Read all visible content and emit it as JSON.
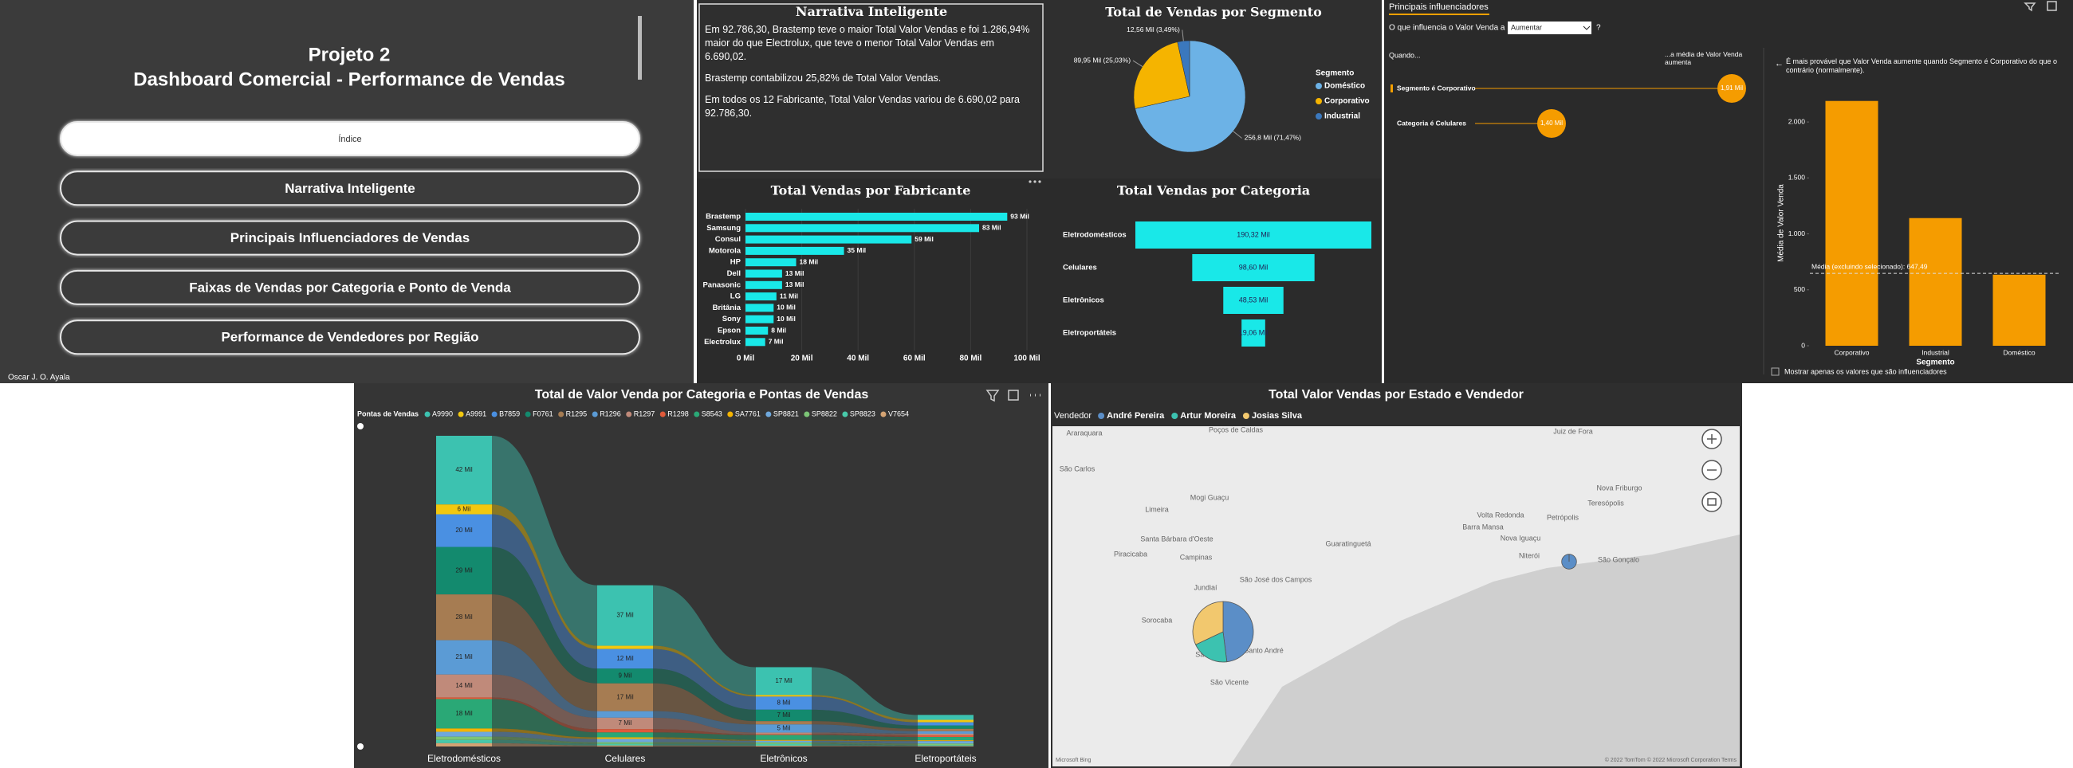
{
  "header": {
    "title": "Projeto 2",
    "subtitle": "Dashboard Comercial - Performance de Vendas",
    "author": "Oscar J. O. Ayala"
  },
  "nav": [
    "Índice",
    "Narrativa Inteligente",
    "Principais Influenciadores de Vendas",
    "Faixas de Vendas por Categoria e Ponto de Venda",
    "Performance de Vendedores por Região"
  ],
  "narrative": {
    "title": "Narrativa Inteligente",
    "paragraphs": [
      "Em 92.786,30, Brastemp teve o maior Total Valor Vendas e foi 1.286,94% maior do que Electrolux, que teve o menor Total Valor Vendas em 6.690,02.",
      "Brastemp contabilizou 25,82% de Total Valor Vendas.",
      "Em todos os 12 Fabricante, Total Valor Vendas variou de 6.690,02 para 92.786,30."
    ]
  },
  "influencers": {
    "tab": "Principais influenciadores",
    "question": "O que influencia o Valor Venda a",
    "dropdown": "Aumentar",
    "help": "?",
    "when": "Quando...",
    "increase": "...a média de Valor Venda aumenta",
    "factors": [
      {
        "label": "Segmento é Corporativo",
        "value": "1,91 Mil"
      },
      {
        "label": "Categoria é Celulares",
        "value": "1,40 Mil"
      }
    ],
    "footer": "Mostrar apenas os valores que são influenciadores"
  },
  "chart_data": [
    {
      "type": "bar",
      "horizontal": true,
      "title": "Total Vendas por Fabricante",
      "categories": [
        "Brastemp",
        "Samsung",
        "Consul",
        "Motorola",
        "HP",
        "Dell",
        "Panasonic",
        "LG",
        "Britânia",
        "Sony",
        "Epson",
        "Electrolux"
      ],
      "values": [
        93,
        83,
        59,
        35,
        18,
        13,
        13,
        11,
        10,
        10,
        8,
        7
      ],
      "value_labels": [
        "93 Mil",
        "83 Mil",
        "59 Mil",
        "35 Mil",
        "18 Mil",
        "13 Mil",
        "13 Mil",
        "11 Mil",
        "10 Mil",
        "10 Mil",
        "8 Mil",
        "7 Mil"
      ],
      "color": "#19e8e8",
      "xlim": [
        0,
        100
      ],
      "xticks": [
        {
          "value": 0,
          "label": "0 Mil"
        },
        {
          "value": 20,
          "label": "20 Mil"
        },
        {
          "value": 40,
          "label": "40 Mil"
        },
        {
          "value": 60,
          "label": "60 Mil"
        },
        {
          "value": 80,
          "label": "80 Mil"
        },
        {
          "value": 100,
          "label": "100 Mil"
        }
      ],
      "grid": true
    },
    {
      "type": "pie",
      "title": "Total de Vendas por Segmento",
      "legend_title": "Segmento",
      "categories": [
        "Doméstico",
        "Corporativo",
        "Industrial"
      ],
      "values": [
        256.8,
        89.95,
        12.56
      ],
      "value_labels": [
        "256,8 Mil (71,47%)",
        "89,95 Mil (25,03%)",
        "12,56 Mil (3,49%)"
      ],
      "colors": [
        "#6cb2e6",
        "#f5b400",
        "#3b78bd"
      ]
    },
    {
      "type": "funnel",
      "title": "Total Vendas por Categoria",
      "categories": [
        "Eletrodomésticos",
        "Celulares",
        "Eletrônicos",
        "Eletroportáteis"
      ],
      "values": [
        190.32,
        98.6,
        48.53,
        19.06
      ],
      "value_labels": [
        "190,32 Mil",
        "98,60 Mil",
        "48,53 Mil",
        "19,06 Mil"
      ],
      "color": "#19e8e8"
    },
    {
      "type": "bar",
      "horizontal": false,
      "subtitle": "É mais provável que Valor Venda aumente quando Segmento é Corporativo do que o contrário (normalmente).",
      "xlabel": "Segmento",
      "ylabel": "Média de Valor Venda",
      "categories": [
        "Corporativo",
        "Industrial",
        "Doméstico"
      ],
      "values": [
        2188,
        1141,
        635
      ],
      "color": "#f59c00",
      "ylim": [
        0,
        2250
      ],
      "yticks": [
        0,
        500,
        {
          "value": 1000,
          "label": "1.000"
        },
        {
          "value": 1500,
          "label": "1.500"
        },
        {
          "value": 2000,
          "label": "2.000"
        }
      ],
      "grid": false,
      "reference": {
        "value": 647.49,
        "label": "Média (excluindo selecionado): 647,49"
      }
    },
    {
      "type": "ribbon",
      "title": "Total de Valor Venda por Categoria e Pontas de Vendas",
      "legend_title": "Pontas de Vendas",
      "categories": [
        "Eletrodomésticos",
        "Celulares",
        "Eletrônicos",
        "Eletroportáteis"
      ],
      "series": [
        {
          "name": "A9990",
          "color": "#3cc2b0",
          "values": [
            42,
            37,
            17,
            3
          ],
          "value_labels": [
            "42 Mil",
            "37 Mil",
            "17 Mil",
            null
          ]
        },
        {
          "name": "A9991",
          "color": "#f2c80f",
          "values": [
            6,
            2,
            1,
            1.5
          ],
          "value_labels": [
            "6 Mil",
            null,
            null,
            null
          ]
        },
        {
          "name": "B7859",
          "color": "#4a90e2",
          "values": [
            20,
            12,
            8,
            2
          ],
          "value_labels": [
            "20 Mil",
            "12 Mil",
            "8 Mil",
            null
          ]
        },
        {
          "name": "F0761",
          "color": "#138a6e",
          "values": [
            29,
            9,
            7,
            2
          ],
          "value_labels": [
            "29 Mil",
            "9 Mil",
            "7 Mil",
            null
          ]
        },
        {
          "name": "R1295",
          "color": "#a67c52",
          "values": [
            28,
            17,
            2,
            1.5
          ],
          "value_labels": [
            "28 Mil",
            "17 Mil",
            null,
            null
          ]
        },
        {
          "name": "R1296",
          "color": "#5b9bd5",
          "values": [
            21,
            4,
            5,
            1.5
          ],
          "value_labels": [
            "21 Mil",
            null,
            "5 Mil",
            null
          ]
        },
        {
          "name": "R1297",
          "color": "#c08a7a",
          "values": [
            14,
            7,
            1,
            1
          ],
          "value_labels": [
            "14 Mil",
            "7 Mil",
            null,
            null
          ]
        },
        {
          "name": "R1298",
          "color": "#e05a3a",
          "values": [
            1,
            2,
            0.5,
            1
          ],
          "value_labels": [
            null,
            null,
            null,
            null
          ]
        },
        {
          "name": "S8543",
          "color": "#2aa876",
          "values": [
            18,
            3,
            3,
            2
          ],
          "value_labels": [
            "18 Mil",
            null,
            null,
            null
          ]
        },
        {
          "name": "SA7761",
          "color": "#f5b400",
          "values": [
            2,
            1,
            0.5,
            0.5
          ],
          "value_labels": [
            null,
            null,
            null,
            null
          ]
        },
        {
          "name": "SP8821",
          "color": "#6fa8dc",
          "values": [
            3,
            2,
            1,
            1.5
          ],
          "value_labels": [
            null,
            null,
            null,
            null
          ]
        },
        {
          "name": "SP8822",
          "color": "#7cc576",
          "values": [
            2,
            1,
            1,
            1
          ],
          "value_labels": [
            null,
            null,
            null,
            null
          ]
        },
        {
          "name": "SP8823",
          "color": "#48c9a9",
          "values": [
            2,
            1,
            1,
            0.5
          ],
          "value_labels": [
            null,
            null,
            null,
            null
          ]
        },
        {
          "name": "V7654",
          "color": "#d4a373",
          "values": [
            2,
            0.6,
            0.5,
            0.3
          ],
          "value_labels": [
            null,
            null,
            null,
            null
          ]
        }
      ]
    },
    {
      "type": "map",
      "title": "Total Valor Vendas por Estado e Vendedor",
      "legend_title": "Vendedor",
      "series": [
        {
          "name": "André Pereira",
          "color": "#5b8ec7",
          "values": [
            48,
            6
          ]
        },
        {
          "name": "Artur Moreira",
          "color": "#3cc2b0",
          "values": [
            20,
            0
          ]
        },
        {
          "name": "Josias Silva",
          "color": "#f2c86e",
          "values": [
            32,
            0
          ]
        }
      ],
      "places": [
        "Juiz de Fora",
        "Araraquara",
        "São Carlos",
        "Poços de Caldas",
        "Mogi Guaçu",
        "Limeira",
        "Piracicaba",
        "Santa Bárbara d'Oeste",
        "Campinas",
        "Jundiaí",
        "São José dos Campos",
        "Guaratinguetá",
        "Sorocaba",
        "São Paulo",
        "Santo André",
        "São Vicente",
        "Volta Redonda",
        "Barra Mansa",
        "Nova Iguaçu",
        "Niterói",
        "São Gonçalo",
        "Petrópolis",
        "Nova Friburgo",
        "Teresópolis"
      ],
      "attribution": "© 2022 TomTom © 2022 Microsoft Corporation Terms",
      "provider": "Microsoft Bing"
    }
  ]
}
